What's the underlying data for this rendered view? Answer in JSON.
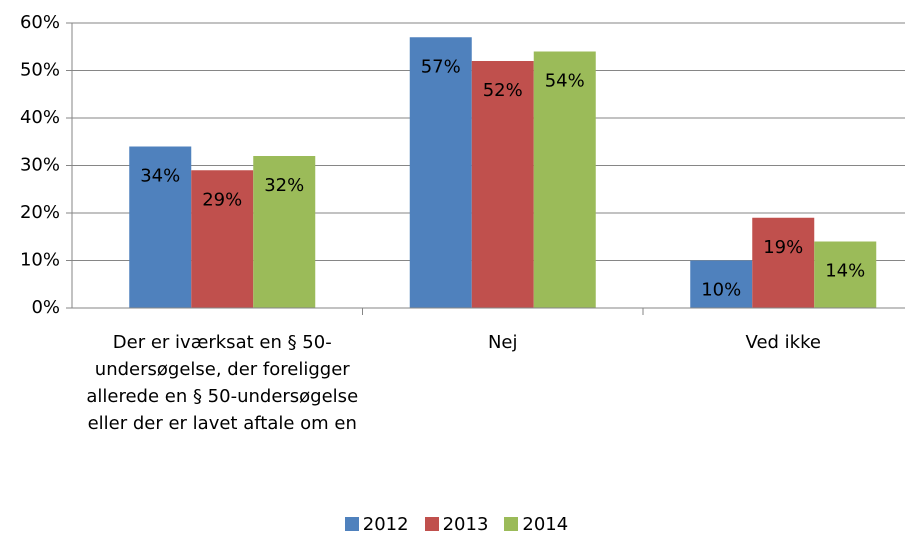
{
  "chart_data": {
    "type": "bar",
    "categories": [
      "Der er iværksat en § 50-undersøgelse, der foreligger allerede en § 50-undersøgelse eller der er lavet aftale om en",
      "Nej",
      "Ved ikke"
    ],
    "series": [
      {
        "name": "2012",
        "color": "#4f81bd",
        "values": [
          34,
          57,
          10
        ],
        "value_labels": [
          "34%",
          "57%",
          "10%"
        ]
      },
      {
        "name": "2013",
        "color": "#c0504d",
        "values": [
          29,
          52,
          19
        ],
        "value_labels": [
          "29%",
          "52%",
          "19%"
        ]
      },
      {
        "name": "2014",
        "color": "#9bbb59",
        "values": [
          32,
          54,
          14
        ],
        "value_labels": [
          "32%",
          "54%",
          "14%"
        ]
      }
    ],
    "ylim": [
      0,
      60
    ],
    "yticks": [
      {
        "value": 0,
        "label": "0%"
      },
      {
        "value": 10,
        "label": "10%"
      },
      {
        "value": 20,
        "label": "20%"
      },
      {
        "value": 30,
        "label": "30%"
      },
      {
        "value": 40,
        "label": "40%"
      },
      {
        "value": 50,
        "label": "50%"
      },
      {
        "value": 60,
        "label": "60%"
      }
    ],
    "grid": true,
    "legend": "bottom"
  }
}
